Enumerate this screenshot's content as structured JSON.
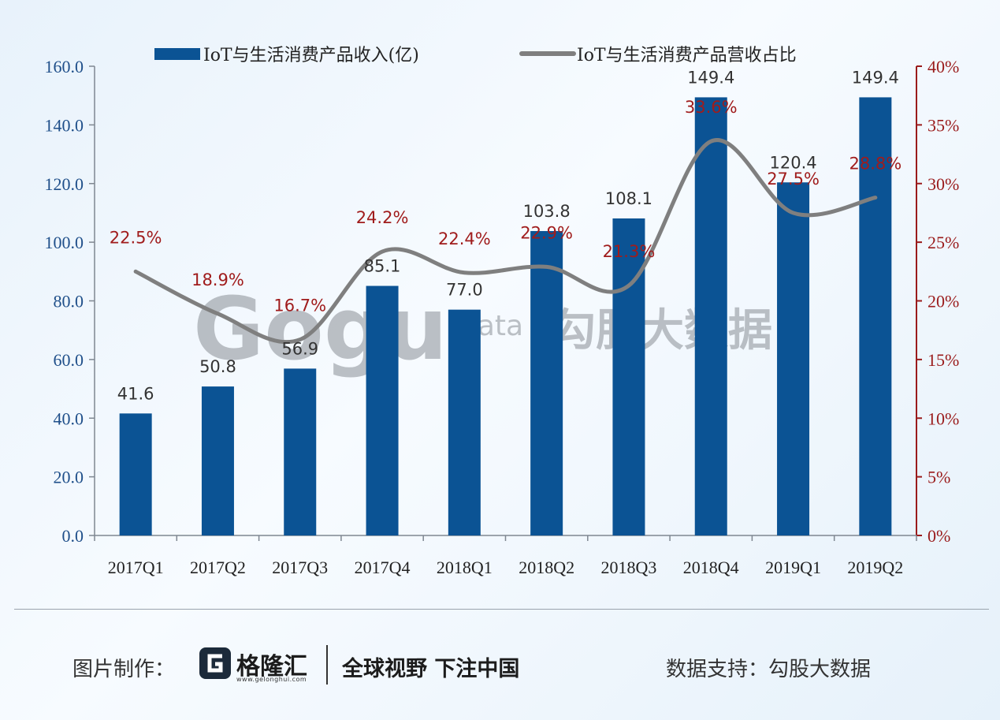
{
  "chart_data": {
    "type": "bar+line",
    "categories": [
      "2017Q1",
      "2017Q2",
      "2017Q3",
      "2017Q4",
      "2018Q1",
      "2018Q2",
      "2018Q3",
      "2018Q4",
      "2019Q1",
      "2019Q2"
    ],
    "series": [
      {
        "name": "IoT与生活消费产品收入(亿)",
        "type": "bar",
        "axis": "left",
        "color": "#0b5394",
        "values": [
          41.6,
          50.8,
          56.9,
          85.1,
          77.0,
          103.8,
          108.1,
          149.4,
          120.4,
          149.4
        ],
        "labels": [
          "41.6",
          "50.8",
          "56.9",
          "85.1",
          "77.0",
          "103.8",
          "108.1",
          "149.4",
          "120.4",
          "149.4"
        ]
      },
      {
        "name": "IoT与生活消费产品营收占比",
        "type": "line",
        "axis": "right",
        "color": "#7f7f7f",
        "values": [
          22.5,
          18.9,
          16.7,
          24.2,
          22.4,
          22.9,
          21.3,
          33.6,
          27.5,
          28.8
        ],
        "labels": [
          "22.5%",
          "18.9%",
          "16.7%",
          "24.2%",
          "22.4%",
          "22.9%",
          "21.3%",
          "33.6%",
          "27.5%",
          "28.8%"
        ]
      }
    ],
    "y_left": {
      "min": 0,
      "max": 160,
      "ticks": [
        "0.0",
        "20.0",
        "40.0",
        "60.0",
        "80.0",
        "100.0",
        "120.0",
        "140.0",
        "160.0"
      ]
    },
    "y_right": {
      "min": 0,
      "max": 40,
      "ticks": [
        "0%",
        "5%",
        "10%",
        "15%",
        "20%",
        "25%",
        "30%",
        "35%",
        "40%"
      ],
      "color": "#9a1b1b"
    },
    "legend_position": "top",
    "grid": false
  },
  "watermark": {
    "brand": "Gogu",
    "suffix": "data",
    "cn": "勾股大数据"
  },
  "footer": {
    "credit_label": "图片制作：",
    "logo_name": "格隆汇",
    "logo_url": "www.gelonghui.com",
    "slogan": "全球视野 下注中国",
    "source": "数据支持：勾股大数据"
  }
}
